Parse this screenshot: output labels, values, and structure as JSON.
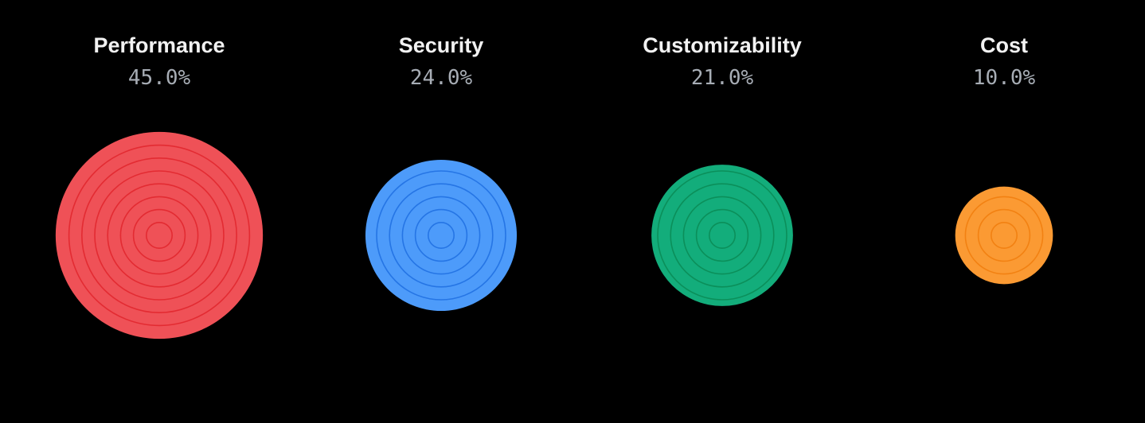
{
  "chart_data": {
    "type": "bubble",
    "categories": [
      "Performance",
      "Security",
      "Customizability",
      "Cost"
    ],
    "values": [
      45.0,
      24.0,
      21.0,
      10.0
    ],
    "value_labels": [
      "45.0%",
      "24.0%",
      "21.0%",
      "10.0%"
    ],
    "unit": "%",
    "colors": [
      "#ef5157",
      "#4d9bfa",
      "#13ad7b",
      "#fb9a33"
    ],
    "ring_colors": [
      "#e0242c",
      "#1f6ee0",
      "#0a8a55",
      "#f07d0d"
    ],
    "ring_counts": [
      8,
      5,
      5,
      3
    ],
    "title": "",
    "xlabel": "",
    "ylabel": "",
    "legend": "none",
    "grid": false
  }
}
